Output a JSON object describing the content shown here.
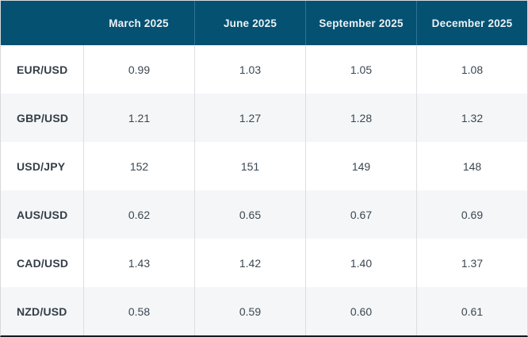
{
  "chart_data": {
    "type": "table",
    "title": "",
    "categories": [
      "March 2025",
      "June 2025",
      "September 2025",
      "December 2025"
    ],
    "series": [
      {
        "name": "EUR/USD",
        "values": [
          0.99,
          1.03,
          1.05,
          1.08
        ]
      },
      {
        "name": "GBP/USD",
        "values": [
          1.21,
          1.27,
          1.28,
          1.32
        ]
      },
      {
        "name": "USD/JPY",
        "values": [
          152,
          151,
          149,
          148
        ]
      },
      {
        "name": "AUS/USD",
        "values": [
          0.62,
          0.65,
          0.67,
          0.69
        ]
      },
      {
        "name": "CAD/USD",
        "values": [
          1.43,
          1.42,
          1.4,
          1.37
        ]
      },
      {
        "name": "NZD/USD",
        "values": [
          0.58,
          0.59,
          0.6,
          0.61
        ]
      }
    ]
  },
  "table": {
    "columns": [
      "March 2025",
      "June 2025",
      "September 2025",
      "December 2025"
    ],
    "rows": [
      {
        "label": "EUR/USD",
        "values": [
          "0.99",
          "1.03",
          "1.05",
          "1.08"
        ]
      },
      {
        "label": "GBP/USD",
        "values": [
          "1.21",
          "1.27",
          "1.28",
          "1.32"
        ]
      },
      {
        "label": "USD/JPY",
        "values": [
          "152",
          "151",
          "149",
          "148"
        ]
      },
      {
        "label": "AUS/USD",
        "values": [
          "0.62",
          "0.65",
          "0.67",
          "0.69"
        ]
      },
      {
        "label": "CAD/USD",
        "values": [
          "1.43",
          "1.42",
          "1.40",
          "1.37"
        ]
      },
      {
        "label": "NZD/USD",
        "values": [
          "0.58",
          "0.59",
          "0.60",
          "0.61"
        ]
      }
    ],
    "colors": {
      "header_bg": "#045172",
      "header_text": "#ecf2f5",
      "header_divider": "#2f7394",
      "row_bg": "#ffffff",
      "row_alt_bg": "#f4f6f8",
      "cell_divider": "#dcdfe1",
      "label_text": "#333e48",
      "value_text": "#3b4751",
      "outer_border": "#d6d9db",
      "bottom_border": "#171b1f"
    }
  }
}
